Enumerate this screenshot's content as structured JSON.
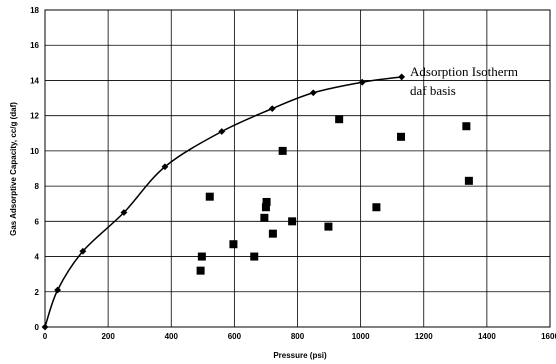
{
  "chart_data": {
    "type": "scatter",
    "title": "",
    "xlabel": "Pressure (psi)",
    "ylabel": "Gas Adsorptive Capacity, cc/g (daf)",
    "xlim": [
      0,
      1600
    ],
    "ylim": [
      0,
      18
    ],
    "xticks": [
      0,
      200,
      400,
      600,
      800,
      1000,
      1200,
      1400,
      1600
    ],
    "yticks": [
      0,
      2,
      4,
      6,
      8,
      10,
      12,
      14,
      16,
      18
    ],
    "grid": true,
    "annotation": {
      "lines": [
        "Adsorption Isotherm",
        "daf basis"
      ]
    },
    "series": [
      {
        "marker": "diamond",
        "style": "line",
        "x": [
          0,
          40,
          120,
          250,
          380,
          560,
          720,
          850,
          1005,
          1130
        ],
        "y": [
          0,
          2.1,
          4.3,
          6.5,
          9.1,
          11.1,
          12.4,
          13.3,
          13.9,
          14.2
        ]
      },
      {
        "marker": "square",
        "style": "scatter",
        "x": [
          493,
          497,
          522,
          597,
          663,
          695,
          700,
          702,
          722,
          753,
          783,
          898,
          932,
          1050,
          1128,
          1335,
          1343
        ],
        "y": [
          3.2,
          4.0,
          7.4,
          4.7,
          4.0,
          6.2,
          6.8,
          7.1,
          5.3,
          10.0,
          6.0,
          5.7,
          11.8,
          6.8,
          10.8,
          11.4,
          8.3
        ]
      }
    ]
  }
}
